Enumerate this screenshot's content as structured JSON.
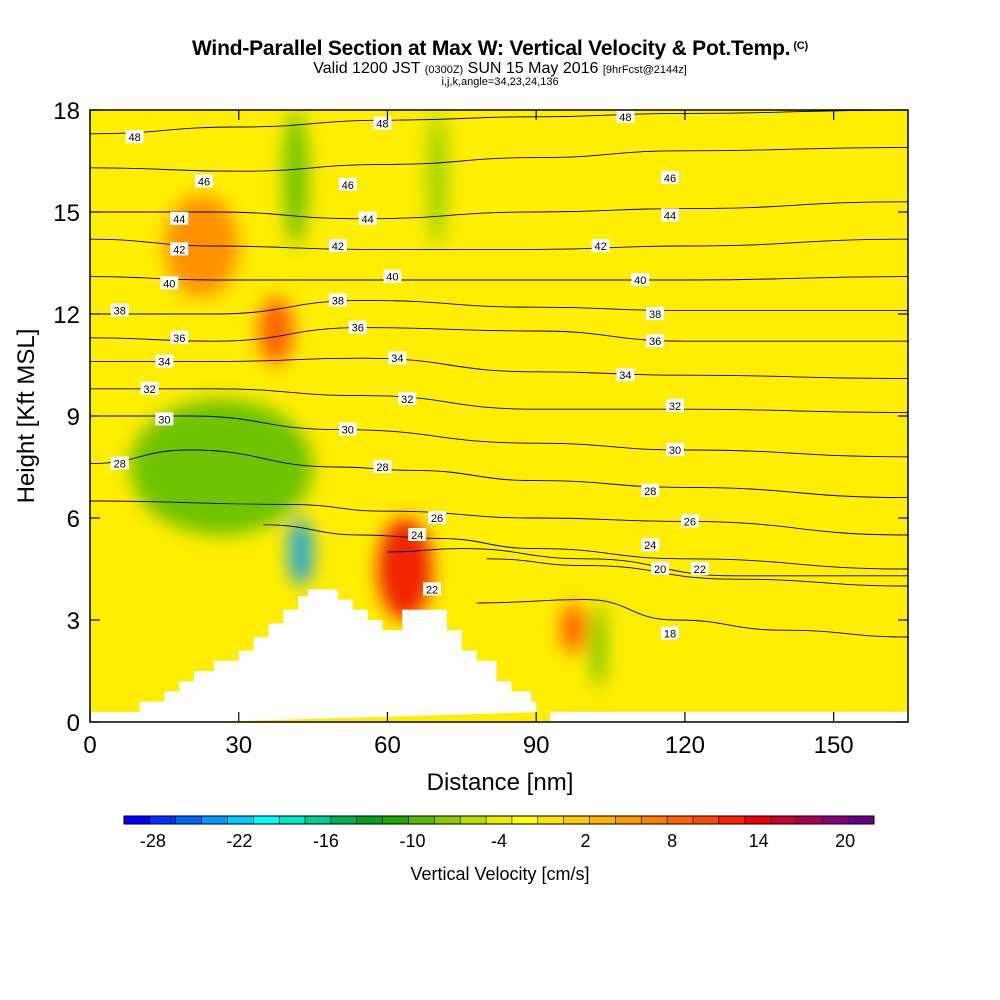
{
  "header": {
    "title": "Wind-Parallel Section at Max W: Vertical Velocity & Pot.Temp.",
    "title_tag": "(C)",
    "valid_prefix": "Valid 1200 JST",
    "valid_utc": "(0300Z)",
    "valid_date": "SUN 15 May 2016",
    "forecast_note": "[9hrFcst@2144z]",
    "indices": "i,j,k,angle=34,23,24,136"
  },
  "chart_data": {
    "type": "heatmap",
    "xlabel": "Distance [nm]",
    "ylabel": "Height [Kft MSL]",
    "xlim": [
      0,
      165
    ],
    "ylim": [
      0,
      18
    ],
    "x_ticks": [
      0,
      30,
      60,
      90,
      120,
      150
    ],
    "y_ticks": [
      0,
      3,
      6,
      9,
      12,
      15,
      18
    ],
    "grid": false,
    "fill_variable": "Vertical Velocity [cm/s]",
    "contour_variable": "Potential Temperature (C)",
    "colorbar": {
      "label": "Vertical Velocity [cm/s]",
      "placement": "bottom",
      "range": [
        -30,
        22
      ],
      "tick_labels": [
        "-28",
        "-22",
        "-16",
        "-10",
        "-4",
        "2",
        "8",
        "14",
        "20"
      ],
      "tick_values": [
        -28,
        -22,
        -16,
        -10,
        -4,
        2,
        8,
        14,
        20
      ],
      "colors": [
        "#0000ff",
        "#0033ff",
        "#0066ff",
        "#0099ff",
        "#00ccff",
        "#00ffff",
        "#00e6c8",
        "#00cc90",
        "#00b050",
        "#00a020",
        "#20aa00",
        "#55bb00",
        "#88cc00",
        "#bbdd00",
        "#eeee00",
        "#ffff00",
        "#ffe000",
        "#ffc800",
        "#ffb000",
        "#ff9800",
        "#ff8000",
        "#ff6400",
        "#ff4800",
        "#ff2000",
        "#ee0000",
        "#cc0030",
        "#aa0055",
        "#880077",
        "#660088"
      ]
    },
    "terrain": [
      [
        10,
        0.6
      ],
      [
        15,
        0.9
      ],
      [
        18,
        1.2
      ],
      [
        21,
        1.5
      ],
      [
        25,
        1.8
      ],
      [
        30,
        2.1
      ],
      [
        33,
        2.5
      ],
      [
        36,
        2.9
      ],
      [
        39,
        3.3
      ],
      [
        42,
        3.7
      ],
      [
        44,
        3.9
      ],
      [
        49,
        3.9
      ],
      [
        50,
        3.6
      ],
      [
        53,
        3.3
      ],
      [
        56,
        3.0
      ],
      [
        59,
        2.7
      ],
      [
        62,
        2.7
      ],
      [
        63,
        3.3
      ],
      [
        71,
        3.3
      ],
      [
        72,
        2.7
      ],
      [
        75,
        2.1
      ],
      [
        78,
        1.8
      ],
      [
        82,
        1.2
      ],
      [
        85,
        0.9
      ],
      [
        89,
        0.6
      ],
      [
        90,
        0.3
      ]
    ],
    "theta_contours": [
      {
        "label": "48",
        "points": [
          [
            0,
            17.3
          ],
          [
            30,
            17.5
          ],
          [
            60,
            17.7
          ],
          [
            90,
            17.8
          ],
          [
            120,
            17.9
          ],
          [
            165,
            18.0
          ]
        ],
        "label_at": [
          [
            9,
            17.2
          ],
          [
            59,
            17.6
          ],
          [
            108,
            17.8
          ]
        ]
      },
      {
        "label": "46",
        "points": [
          [
            0,
            16.3
          ],
          [
            30,
            16.2
          ],
          [
            60,
            16.4
          ],
          [
            90,
            16.6
          ],
          [
            120,
            16.8
          ],
          [
            165,
            16.9
          ]
        ],
        "label_at": [
          [
            23,
            15.9
          ],
          [
            52,
            15.8
          ],
          [
            117,
            16.0
          ]
        ]
      },
      {
        "label": "44",
        "points": [
          [
            0,
            15.0
          ],
          [
            25,
            15.0
          ],
          [
            55,
            14.8
          ],
          [
            90,
            15.0
          ],
          [
            120,
            15.1
          ],
          [
            165,
            15.3
          ]
        ],
        "label_at": [
          [
            18,
            14.8
          ],
          [
            56,
            14.8
          ],
          [
            117,
            14.9
          ]
        ]
      },
      {
        "label": "42",
        "points": [
          [
            0,
            14.2
          ],
          [
            25,
            14.0
          ],
          [
            55,
            13.9
          ],
          [
            90,
            13.9
          ],
          [
            120,
            14.0
          ],
          [
            165,
            14.2
          ]
        ],
        "label_at": [
          [
            18,
            13.9
          ],
          [
            50,
            14.0
          ],
          [
            103,
            14.0
          ]
        ]
      },
      {
        "label": "40",
        "points": [
          [
            0,
            13.1
          ],
          [
            25,
            13.0
          ],
          [
            55,
            13.0
          ],
          [
            90,
            13.0
          ],
          [
            120,
            13.0
          ],
          [
            165,
            13.1
          ]
        ],
        "label_at": [
          [
            16,
            12.9
          ],
          [
            61,
            13.1
          ],
          [
            111,
            13.0
          ]
        ]
      },
      {
        "label": "38",
        "points": [
          [
            0,
            12.0
          ],
          [
            25,
            12.0
          ],
          [
            55,
            12.4
          ],
          [
            90,
            12.2
          ],
          [
            120,
            12.1
          ],
          [
            165,
            12.1
          ]
        ],
        "label_at": [
          [
            6,
            12.1
          ],
          [
            50,
            12.4
          ],
          [
            114,
            12.0
          ]
        ]
      },
      {
        "label": "36",
        "points": [
          [
            0,
            11.3
          ],
          [
            25,
            11.2
          ],
          [
            55,
            11.6
          ],
          [
            90,
            11.5
          ],
          [
            120,
            11.2
          ],
          [
            165,
            11.2
          ]
        ],
        "label_at": [
          [
            18,
            11.3
          ],
          [
            54,
            11.6
          ],
          [
            114,
            11.2
          ]
        ]
      },
      {
        "label": "34",
        "points": [
          [
            0,
            10.6
          ],
          [
            25,
            10.6
          ],
          [
            55,
            10.7
          ],
          [
            90,
            10.3
          ],
          [
            120,
            10.2
          ],
          [
            165,
            10.1
          ]
        ],
        "label_at": [
          [
            15,
            10.6
          ],
          [
            62,
            10.7
          ],
          [
            108,
            10.2
          ]
        ]
      },
      {
        "label": "32",
        "points": [
          [
            0,
            9.8
          ],
          [
            25,
            9.8
          ],
          [
            55,
            9.6
          ],
          [
            90,
            9.2
          ],
          [
            120,
            9.2
          ],
          [
            165,
            9.1
          ]
        ],
        "label_at": [
          [
            12,
            9.8
          ],
          [
            64,
            9.5
          ],
          [
            118,
            9.3
          ]
        ]
      },
      {
        "label": "30",
        "points": [
          [
            0,
            9.0
          ],
          [
            20,
            9.0
          ],
          [
            50,
            8.6
          ],
          [
            90,
            8.2
          ],
          [
            120,
            8.0
          ],
          [
            165,
            7.8
          ]
        ],
        "label_at": [
          [
            15,
            8.9
          ],
          [
            52,
            8.6
          ],
          [
            118,
            8.0
          ]
        ]
      },
      {
        "label": "28",
        "points": [
          [
            0,
            7.6
          ],
          [
            20,
            8.0
          ],
          [
            50,
            7.5
          ],
          [
            65,
            7.4
          ],
          [
            90,
            7.1
          ],
          [
            120,
            6.9
          ],
          [
            165,
            6.6
          ]
        ],
        "label_at": [
          [
            6,
            7.6
          ],
          [
            59,
            7.5
          ],
          [
            113,
            6.8
          ]
        ]
      },
      {
        "label": "26",
        "points": [
          [
            0,
            6.5
          ],
          [
            40,
            6.4
          ],
          [
            60,
            6.2
          ],
          [
            90,
            6.0
          ],
          [
            120,
            5.9
          ],
          [
            165,
            5.5
          ]
        ],
        "label_at": [
          [
            70,
            6.0
          ],
          [
            121,
            5.9
          ]
        ]
      },
      {
        "label": "24",
        "points": [
          [
            35,
            5.8
          ],
          [
            55,
            5.5
          ],
          [
            70,
            5.4
          ],
          [
            90,
            5.1
          ],
          [
            120,
            4.8
          ],
          [
            165,
            4.5
          ]
        ],
        "label_at": [
          [
            66,
            5.5
          ],
          [
            113,
            5.2
          ]
        ]
      },
      {
        "label": "22",
        "points": [
          [
            60,
            5.0
          ],
          [
            75,
            5.1
          ],
          [
            100,
            4.8
          ],
          [
            130,
            4.3
          ],
          [
            165,
            4.3
          ]
        ],
        "label_at": [
          [
            69,
            3.9
          ],
          [
            123,
            4.5
          ]
        ]
      },
      {
        "label": "20",
        "points": [
          [
            80,
            4.8
          ],
          [
            100,
            4.6
          ],
          [
            130,
            4.2
          ],
          [
            165,
            4.0
          ]
        ],
        "label_at": [
          [
            115,
            4.5
          ]
        ]
      },
      {
        "label": "18",
        "points": [
          [
            78,
            3.5
          ],
          [
            100,
            3.6
          ],
          [
            118,
            3.0
          ],
          [
            140,
            2.7
          ],
          [
            165,
            2.5
          ]
        ],
        "label_at": [
          [
            117,
            2.6
          ]
        ]
      }
    ],
    "velocity_features": [
      {
        "name": "upper-downdraft",
        "x": [
          39,
          44
        ],
        "y": [
          14,
          18
        ],
        "value": -10
      },
      {
        "name": "upper-downdraft-2",
        "x": [
          68,
          72
        ],
        "y": [
          14,
          18
        ],
        "value": -8
      },
      {
        "name": "upper-updraft",
        "x": [
          34,
          41
        ],
        "y": [
          10.5,
          12.5
        ],
        "value": 10
      },
      {
        "name": "upper-left-updraft",
        "x": [
          15,
          30
        ],
        "y": [
          12.5,
          15.5
        ],
        "value": 6
      },
      {
        "name": "lee-downdraft-band",
        "x": [
          8,
          45
        ],
        "y": [
          5.5,
          9.5
        ],
        "value": -10
      },
      {
        "name": "max-downdraft",
        "x": [
          40,
          45
        ],
        "y": [
          4,
          6
        ],
        "value": -24
      },
      {
        "name": "lee-updraft",
        "x": [
          58,
          69
        ],
        "y": [
          3,
          6
        ],
        "value": 14
      },
      {
        "name": "secondary-updraft",
        "x": [
          95,
          100
        ],
        "y": [
          2,
          3.5
        ],
        "value": 10
      },
      {
        "name": "secondary-downdraft",
        "x": [
          101,
          104
        ],
        "y": [
          1,
          3.5
        ],
        "value": -10
      }
    ]
  }
}
